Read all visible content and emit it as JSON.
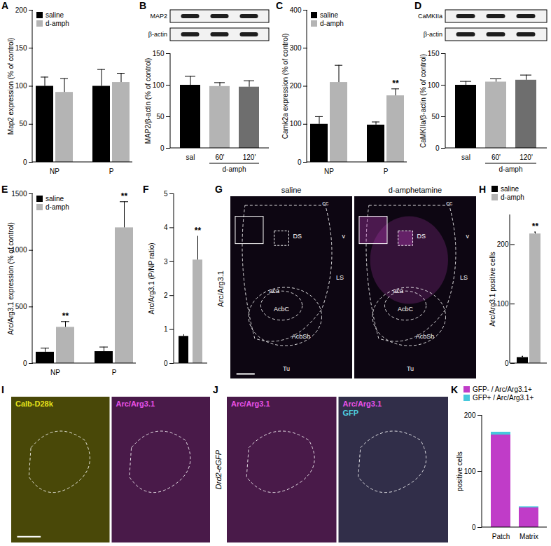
{
  "chart_data": [
    {
      "panel": "A",
      "type": "bar",
      "categories": [
        "NP",
        "P"
      ],
      "ylabel": "Map2 expression (% of control)",
      "ylim": [
        0,
        200
      ],
      "yticks": [
        0,
        50,
        100,
        150,
        200
      ],
      "legend": "top-left",
      "series": [
        {
          "name": "saline",
          "color": "#000000",
          "values": [
            100,
            100
          ],
          "errors": [
            12,
            22
          ]
        },
        {
          "name": "d-amph",
          "color": "#b4b4b4",
          "values": [
            92,
            105
          ],
          "errors": [
            18,
            12
          ]
        }
      ]
    },
    {
      "panel": "B",
      "type": "bar",
      "blots": [
        "MAP2",
        "β-actin"
      ],
      "categories": [
        "sal",
        "60'",
        "120'"
      ],
      "group": {
        "label": "d-amph",
        "categories": [
          "60'",
          "120'"
        ]
      },
      "values": [
        100,
        98,
        97
      ],
      "errors": [
        14,
        6,
        10
      ],
      "colors": [
        "#000000",
        "#b4b4b4",
        "#6e6e6e"
      ],
      "ylabel": "MAP2/β-actin (% of control)",
      "ylim": [
        0,
        150
      ],
      "yticks": [
        0,
        50,
        100,
        150
      ]
    },
    {
      "panel": "C",
      "type": "bar",
      "categories": [
        "NP",
        "P"
      ],
      "ylabel": "Camk2a expression (% of control)",
      "ylim": [
        0,
        400
      ],
      "yticks": [
        0,
        100,
        200,
        300,
        400
      ],
      "legend": "top-left",
      "series": [
        {
          "name": "saline",
          "color": "#000000",
          "values": [
            100,
            98
          ],
          "errors": [
            20,
            8
          ]
        },
        {
          "name": "d-amph",
          "color": "#b4b4b4",
          "values": [
            210,
            175
          ],
          "errors": [
            45,
            18
          ],
          "annotations": [
            null,
            "**"
          ]
        }
      ]
    },
    {
      "panel": "D",
      "type": "bar",
      "blots": [
        "CaMKIIa",
        "β-actin"
      ],
      "categories": [
        "sal",
        "60'",
        "120'"
      ],
      "group": {
        "label": "d-amph",
        "categories": [
          "60'",
          "120'"
        ]
      },
      "values": [
        100,
        105,
        108
      ],
      "errors": [
        6,
        5,
        8
      ],
      "colors": [
        "#000000",
        "#b4b4b4",
        "#6e6e6e"
      ],
      "ylabel": "CaMKIIa/β-actin (% of control)",
      "ylim": [
        0,
        150
      ],
      "yticks": [
        0,
        50,
        100,
        150
      ]
    },
    {
      "panel": "E",
      "type": "bar",
      "categories": [
        "NP",
        "P"
      ],
      "ylabel": "Arc/Arg3.1 expression (% of control)",
      "ylim": [
        0,
        1500
      ],
      "yticks": [
        0,
        500,
        1000,
        1500
      ],
      "legend": "top-left",
      "series": [
        {
          "name": "saline",
          "color": "#000000",
          "values": [
            100,
            105
          ],
          "errors": [
            35,
            40
          ]
        },
        {
          "name": "d-amph",
          "color": "#b4b4b4",
          "values": [
            320,
            1200
          ],
          "errors": [
            50,
            230
          ],
          "annotations": [
            "**",
            "**"
          ]
        }
      ]
    },
    {
      "panel": "F",
      "type": "bar",
      "categories": [
        null,
        null
      ],
      "values": [
        0.8,
        3.05
      ],
      "errors": [
        0.05,
        0.7
      ],
      "annotations": [
        null,
        "**"
      ],
      "colors": [
        "#000000",
        "#b4b4b4"
      ],
      "ylabel": "Arc/Arg3.1 (P/NP ratio)",
      "ylim": [
        0,
        5
      ],
      "yticks": [
        0,
        1,
        2,
        3,
        4,
        5
      ]
    },
    {
      "panel": "H",
      "type": "bar",
      "categories": [
        null
      ],
      "ylabel": "Arc/Arg3.1 positive cells",
      "ylim": [
        0,
        250
      ],
      "yticks": [
        0,
        100,
        200
      ],
      "legend": "top-left",
      "series": [
        {
          "name": "saline",
          "color": "#000000",
          "values": [
            10
          ],
          "errors": [
            2
          ]
        },
        {
          "name": "d-amph",
          "color": "#b4b4b4",
          "values": [
            218
          ],
          "errors": [
            3
          ],
          "annotations": [
            "**"
          ]
        }
      ]
    },
    {
      "panel": "K",
      "type": "bar",
      "stacked": true,
      "categories": [
        "Patch",
        "Matrix"
      ],
      "ylabel": "positive cells",
      "ylim": [
        0,
        200
      ],
      "yticks": [
        0,
        100,
        200
      ],
      "legend": "top",
      "series": [
        {
          "name": "GFP- / Arc/Arg3.1+",
          "color": "#c03cc8",
          "values": [
            165,
            35
          ]
        },
        {
          "name": "GFP+ / Arc/Arg3.1+",
          "color": "#46c8dc",
          "values": [
            5,
            2
          ]
        }
      ]
    }
  ],
  "images": [
    {
      "panel": "G",
      "side_label": "Arc/Arg3.1",
      "views": [
        {
          "title": "saline",
          "regions": [
            "DS",
            "cc",
            "v",
            "LS",
            "aca",
            "AcbC",
            "AcbSh",
            "Tu"
          ]
        },
        {
          "title": "d-amphetamine",
          "regions": [
            "DS",
            "cc",
            "v",
            "LS",
            "aca",
            "AcbC",
            "AcbSh",
            "Tu"
          ]
        }
      ]
    },
    {
      "panel": "I",
      "views": [
        {
          "title": "Calb-D28k",
          "color": "#e6e01a"
        },
        {
          "title": "Arc/Arg3.1",
          "color": "#e650e6"
        }
      ]
    },
    {
      "panel": "J",
      "side_label": "Drd2-eGFP",
      "views": [
        {
          "title": "Arc/Arg3.1",
          "color": "#e650e6"
        },
        {
          "title": "Arc/Arg3.1",
          "color": "#e650e6",
          "overlay": {
            "title": "GFP",
            "color": "#4fd0e0"
          }
        }
      ]
    }
  ]
}
